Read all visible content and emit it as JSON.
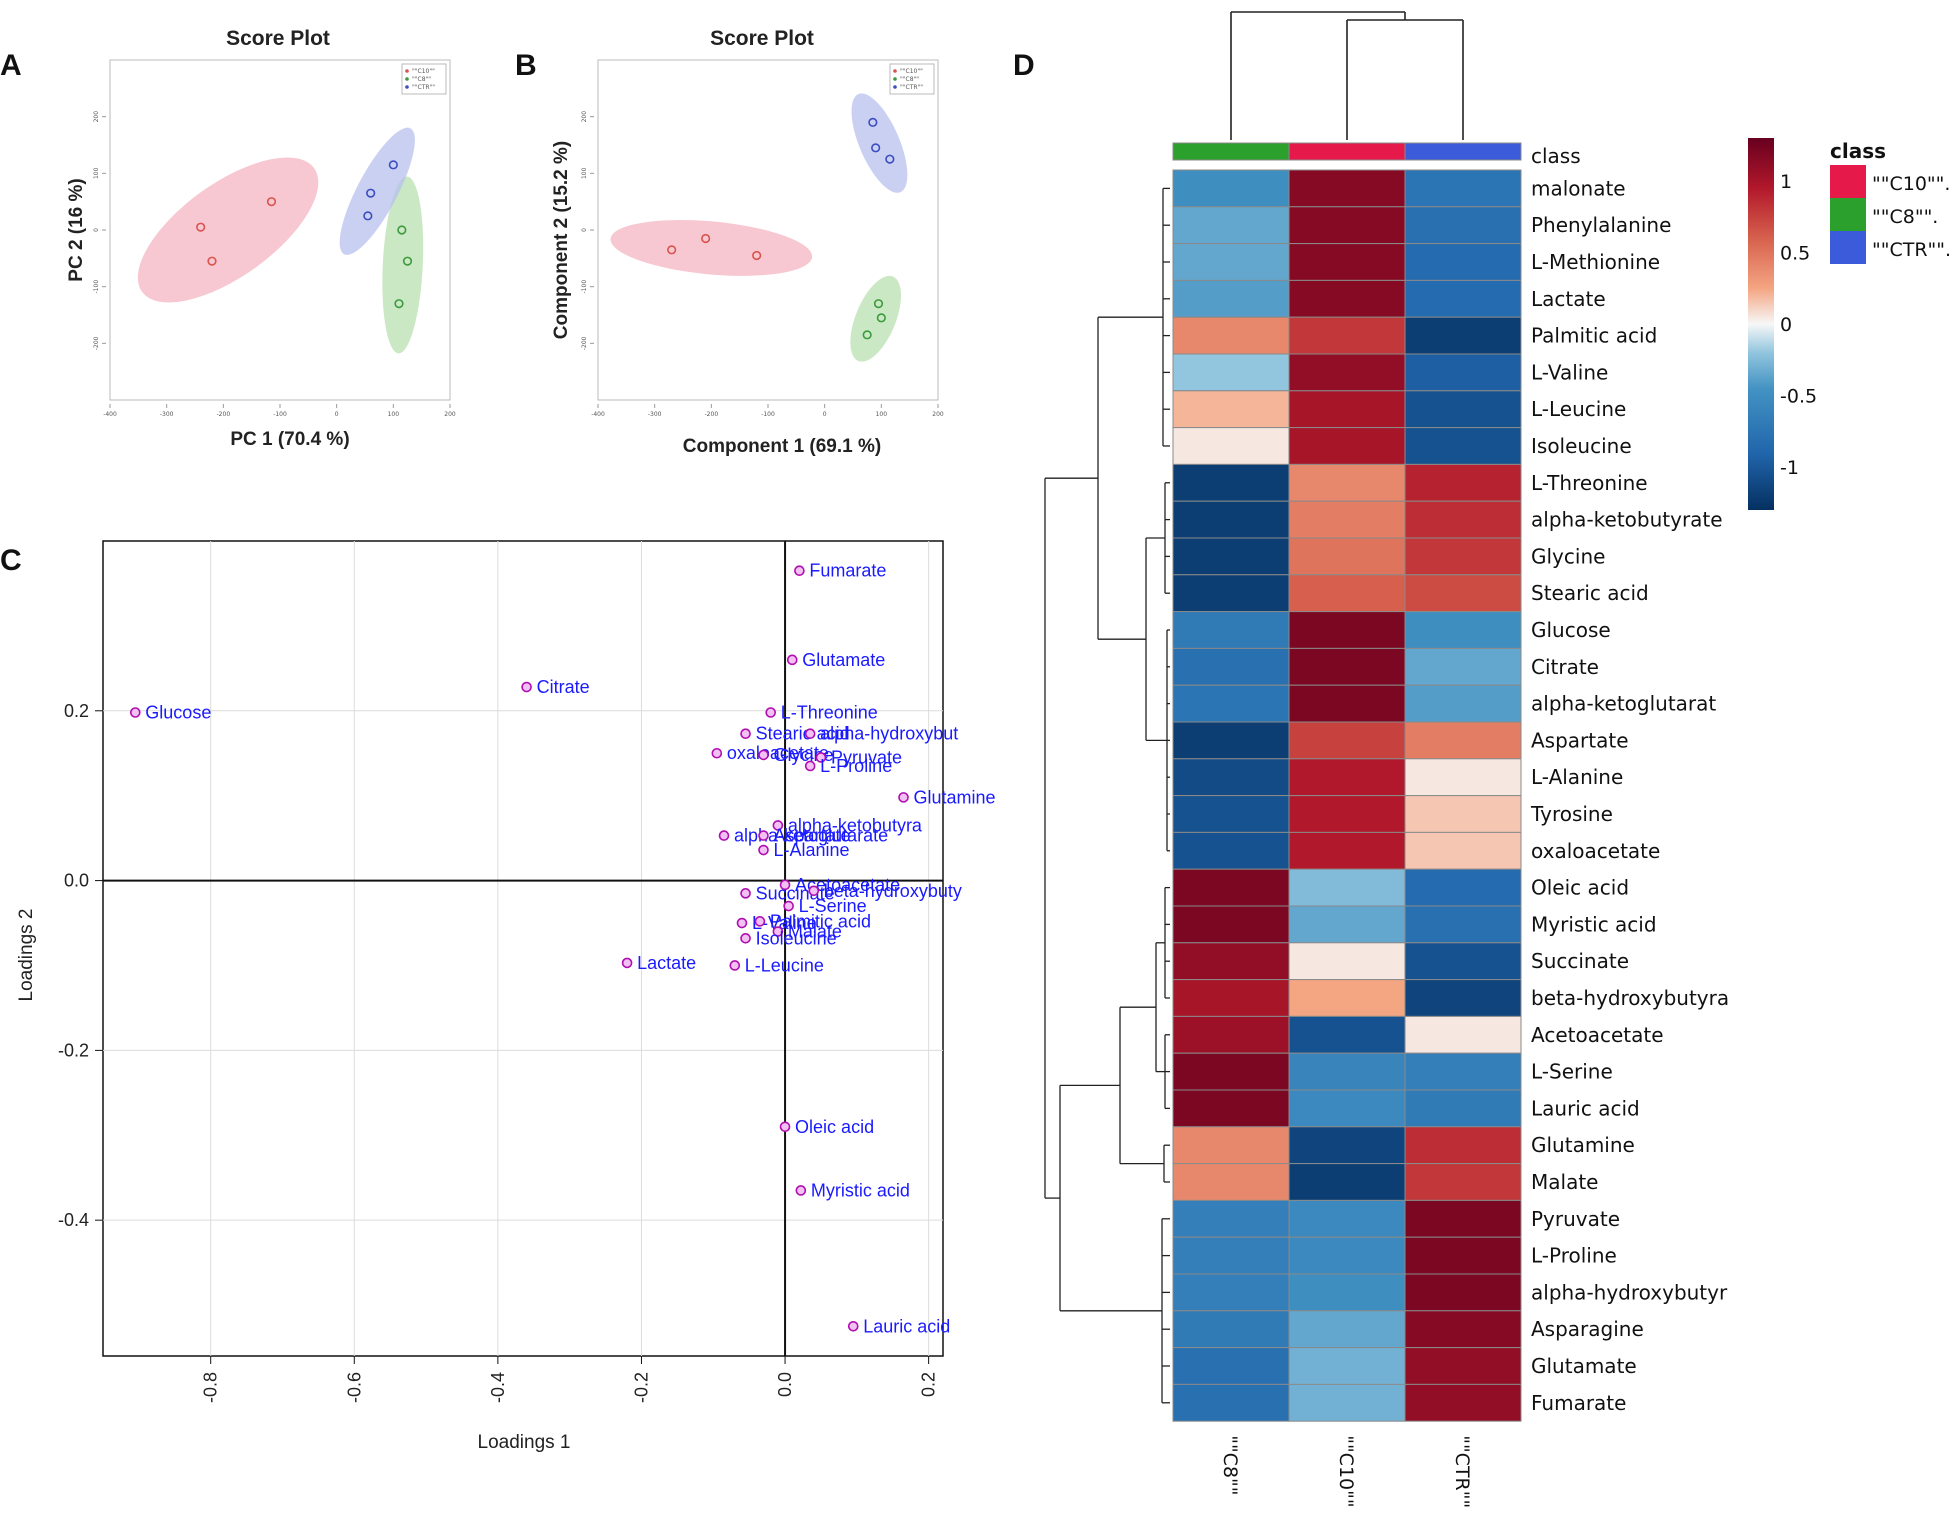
{
  "panels": {
    "a": "A",
    "b": "B",
    "c": "C",
    "d": "D"
  },
  "chart_data": [
    {
      "id": "A",
      "type": "scatter",
      "title": "Score Plot",
      "xlabel": "PC 1 (70.4 %)",
      "ylabel": "PC 2 (16 %)",
      "xlim": [
        -400,
        200
      ],
      "ylim": [
        -300,
        300
      ],
      "xticks": [
        -400,
        -300,
        -200,
        -100,
        0,
        100,
        200
      ],
      "yticks": [
        -200,
        -100,
        0,
        100,
        200
      ],
      "legend": [
        "\"\"C10\"\"",
        "\"\"C8\"\"",
        "\"\"CTR\"\""
      ],
      "series": [
        {
          "name": "C10",
          "color": "#d9534f",
          "fill": "#f4b6c2",
          "x": [
            -240,
            -220,
            -115
          ],
          "y": [
            5,
            -55,
            50
          ]
        },
        {
          "name": "C8",
          "color": "#3c9a3c",
          "fill": "#b8e0b0",
          "x": [
            115,
            125,
            110
          ],
          "y": [
            0,
            -55,
            -130
          ]
        },
        {
          "name": "CTR",
          "color": "#3b4cc0",
          "fill": "#b8c0ee",
          "x": [
            100,
            60,
            55
          ],
          "y": [
            115,
            65,
            25
          ]
        }
      ]
    },
    {
      "id": "B",
      "type": "scatter",
      "title": "Score Plot",
      "xlabel": "Component 1 (69.1 %)",
      "ylabel": "Component 2 (15.2 %)",
      "xlim": [
        -400,
        200
      ],
      "ylim": [
        -300,
        300
      ],
      "xticks": [
        -400,
        -300,
        -200,
        -100,
        0,
        100,
        200
      ],
      "yticks": [
        -200,
        -100,
        0,
        100,
        200
      ],
      "legend": [
        "\"\"C10\"\"",
        "\"\"C8\"\"",
        "\"\"CTR\"\""
      ],
      "series": [
        {
          "name": "C10",
          "color": "#d9534f",
          "fill": "#f4b6c2",
          "x": [
            -270,
            -210,
            -120
          ],
          "y": [
            -35,
            -15,
            -45
          ]
        },
        {
          "name": "CTR",
          "color": "#3b4cc0",
          "fill": "#b8c0ee",
          "x": [
            85,
            90,
            115
          ],
          "y": [
            190,
            145,
            125
          ]
        },
        {
          "name": "C8",
          "color": "#3c9a3c",
          "fill": "#b8e0b0",
          "x": [
            95,
            100,
            75
          ],
          "y": [
            -130,
            -155,
            -185
          ]
        }
      ]
    },
    {
      "id": "C",
      "type": "scatter",
      "title": "",
      "xlabel": "Loadings 1",
      "ylabel": "Loadings 2",
      "xlim": [
        -0.95,
        0.22
      ],
      "ylim": [
        -0.56,
        0.4
      ],
      "xticks": [
        -0.8,
        -0.6,
        -0.4,
        -0.2,
        0.0,
        0.2
      ],
      "xtick_labels": [
        "-0.8",
        "-0.6",
        "-0.4",
        "-0.2",
        "0.0",
        "0.2"
      ],
      "yticks": [
        0.2,
        0.0,
        -0.2,
        -0.4
      ],
      "ytick_labels": [
        "0.2",
        "0.0",
        "-0.2",
        "-0.4"
      ],
      "points": [
        {
          "label": "Fumarate",
          "x": 0.02,
          "y": 0.365
        },
        {
          "label": "Glutamate",
          "x": 0.01,
          "y": 0.26
        },
        {
          "label": "Citrate",
          "x": -0.36,
          "y": 0.228
        },
        {
          "label": "Glucose",
          "x": -0.905,
          "y": 0.198
        },
        {
          "label": "L-Threonine",
          "x": -0.02,
          "y": 0.198
        },
        {
          "label": "Stearic acid",
          "x": -0.055,
          "y": 0.173
        },
        {
          "label": "alpha-hydroxybut",
          "x": 0.035,
          "y": 0.173
        },
        {
          "label": "oxaloacetate",
          "x": -0.095,
          "y": 0.15
        },
        {
          "label": "Glycine",
          "x": -0.03,
          "y": 0.148
        },
        {
          "label": "Pyruvate",
          "x": 0.05,
          "y": 0.145
        },
        {
          "label": "L-Proline",
          "x": 0.035,
          "y": 0.135
        },
        {
          "label": "Glutamine",
          "x": 0.165,
          "y": 0.098
        },
        {
          "label": "alpha-ketobutyra",
          "x": -0.01,
          "y": 0.065
        },
        {
          "label": "alpha-ketoglutarate",
          "x": -0.085,
          "y": 0.053
        },
        {
          "label": "Aspartate",
          "x": -0.03,
          "y": 0.053
        },
        {
          "label": "L-Alanine",
          "x": -0.03,
          "y": 0.036
        },
        {
          "label": "Acetoacetate",
          "x": 0.0,
          "y": -0.005
        },
        {
          "label": "Succinate",
          "x": -0.055,
          "y": -0.015
        },
        {
          "label": "beta-hydroxybuty",
          "x": 0.04,
          "y": -0.012
        },
        {
          "label": "L-Serine",
          "x": 0.005,
          "y": -0.03
        },
        {
          "label": "L-Valine",
          "x": -0.06,
          "y": -0.05
        },
        {
          "label": "Palmitic acid",
          "x": -0.035,
          "y": -0.048
        },
        {
          "label": "Malate",
          "x": -0.01,
          "y": -0.06
        },
        {
          "label": "Isoleucine",
          "x": -0.055,
          "y": -0.068
        },
        {
          "label": "Lactate",
          "x": -0.22,
          "y": -0.097
        },
        {
          "label": "L-Leucine",
          "x": -0.07,
          "y": -0.1
        },
        {
          "label": "Oleic acid",
          "x": 0.0,
          "y": -0.29
        },
        {
          "label": "Myristic acid",
          "x": 0.022,
          "y": -0.365
        },
        {
          "label": "Lauric acid",
          "x": 0.095,
          "y": -0.525
        }
      ]
    },
    {
      "id": "D",
      "type": "heatmap",
      "title": "",
      "columns": [
        "\"\"C8\"\"",
        "\"\"C10\"\"",
        "\"\"CTR\"\""
      ],
      "column_class_colors": [
        "#2ca02c",
        "#e6194b",
        "#3b5bdb"
      ],
      "class_row_label": "class",
      "rows": [
        "malonate",
        "Phenylalanine",
        "L-Methionine",
        "Lactate",
        "Palmitic acid",
        "L-Valine",
        "L-Leucine",
        "Isoleucine",
        "L-Threonine",
        "alpha-ketobutyrate",
        "Glycine",
        "Stearic acid",
        "Glucose",
        "Citrate",
        "alpha-ketoglutarat",
        "Aspartate",
        "L-Alanine",
        "Tyrosine",
        "oxaloacetate",
        "Oleic acid",
        "Myristic acid",
        "Succinate",
        "beta-hydroxybutyra",
        "Acetoacetate",
        "L-Serine",
        "Lauric acid",
        "Glutamine",
        "Malate",
        "Pyruvate",
        "L-Proline",
        "alpha-hydroxybutyr",
        "Asparagine",
        "Glutamate",
        "Fumarate"
      ],
      "values": [
        [
          -0.5,
          1.15,
          -0.75
        ],
        [
          -0.35,
          1.15,
          -0.8
        ],
        [
          -0.35,
          1.15,
          -0.85
        ],
        [
          -0.4,
          1.15,
          -0.85
        ],
        [
          0.4,
          0.8,
          -1.2
        ],
        [
          -0.2,
          1.1,
          -0.95
        ],
        [
          0.2,
          1.0,
          -1.05
        ],
        [
          0.05,
          1.0,
          -1.05
        ],
        [
          -1.2,
          0.4,
          0.9
        ],
        [
          -1.2,
          0.45,
          0.85
        ],
        [
          -1.2,
          0.5,
          0.8
        ],
        [
          -1.2,
          0.6,
          0.7
        ],
        [
          -0.7,
          1.2,
          -0.5
        ],
        [
          -0.8,
          1.2,
          -0.35
        ],
        [
          -0.75,
          1.2,
          -0.4
        ],
        [
          -1.2,
          0.75,
          0.45
        ],
        [
          -1.1,
          0.95,
          0.05
        ],
        [
          -1.05,
          0.95,
          0.15
        ],
        [
          -1.05,
          0.95,
          0.15
        ],
        [
          1.2,
          -0.25,
          -0.85
        ],
        [
          1.2,
          -0.35,
          -0.8
        ],
        [
          1.1,
          0.05,
          -1.05
        ],
        [
          1.0,
          0.25,
          -1.15
        ],
        [
          1.05,
          -1.05,
          0.05
        ],
        [
          1.2,
          -0.6,
          -0.65
        ],
        [
          1.2,
          -0.55,
          -0.7
        ],
        [
          0.4,
          -1.15,
          0.85
        ],
        [
          0.4,
          -1.2,
          0.8
        ],
        [
          -0.65,
          -0.55,
          1.2
        ],
        [
          -0.65,
          -0.55,
          1.2
        ],
        [
          -0.65,
          -0.5,
          1.2
        ],
        [
          -0.7,
          -0.35,
          1.15
        ],
        [
          -0.8,
          -0.3,
          1.1
        ],
        [
          -0.8,
          -0.3,
          1.1
        ]
      ],
      "colorbar": {
        "min": -1.3,
        "max": 1.3,
        "ticks": [
          1,
          0.5,
          0,
          -0.5,
          -1
        ],
        "tick_labels": [
          "1",
          "0.5",
          "0",
          "-0.5",
          "-1"
        ]
      },
      "legend_title": "class",
      "legend": [
        {
          "label": "\"\"C10\"\".",
          "color": "#e6194b"
        },
        {
          "label": "\"\"C8\"\".",
          "color": "#2ca02c"
        },
        {
          "label": "\"\"CTR\"\".",
          "color": "#3b5bdb"
        }
      ]
    }
  ]
}
